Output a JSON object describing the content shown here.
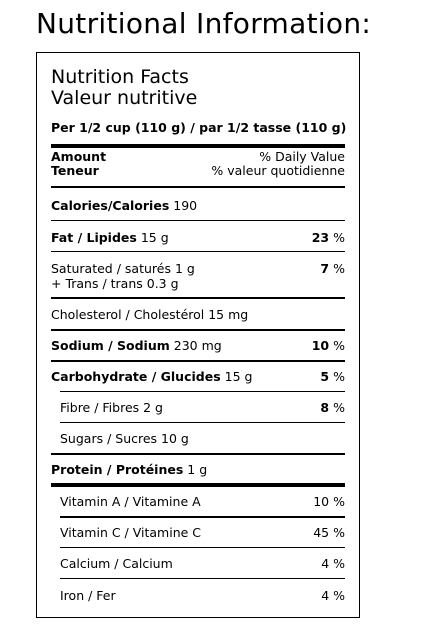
{
  "heading": "Nutritional Information:",
  "label": {
    "title_en": "Nutrition Facts",
    "title_fr": "Valeur nutritive",
    "serving": "Per 1/2 cup (110 g) / par 1/2 tasse (110 g)",
    "amount_en": "Amount",
    "amount_fr": "Teneur",
    "dv_en": "% Daily Value",
    "dv_fr": "% valeur quotidienne",
    "calories": {
      "label": "Calories/Calories",
      "value": "190"
    },
    "fat": {
      "label": "Fat / Lipides",
      "value": "15 g",
      "dv": "23",
      "unit": "%"
    },
    "saturated": {
      "label": "Saturated / saturés 1 g",
      "label2": "+ Trans / trans 0.3 g",
      "dv": "7",
      "unit": "%"
    },
    "cholesterol": {
      "label": "Cholesterol / Cholestérol 15 mg"
    },
    "sodium": {
      "label": "Sodium / Sodium",
      "value": "230 mg",
      "dv": "10",
      "unit": "%"
    },
    "carbohydrate": {
      "label": "Carbohydrate / Glucides",
      "value": "15 g",
      "dv": "5",
      "unit": "%"
    },
    "fibre": {
      "label": "Fibre / Fibres 2 g",
      "dv": "8",
      "unit": "%"
    },
    "sugars": {
      "label": "Sugars / Sucres 10 g"
    },
    "protein": {
      "label": "Protein / Protéines",
      "value": "1 g"
    },
    "vitamins": [
      {
        "label": "Vitamin A / Vitamine A",
        "dv": "10 %"
      },
      {
        "label": "Vitamin C / Vitamine C",
        "dv": "45 %"
      },
      {
        "label": "Calcium / Calcium",
        "dv": "4 %"
      },
      {
        "label": "Iron / Fer",
        "dv": "4 %"
      }
    ]
  }
}
